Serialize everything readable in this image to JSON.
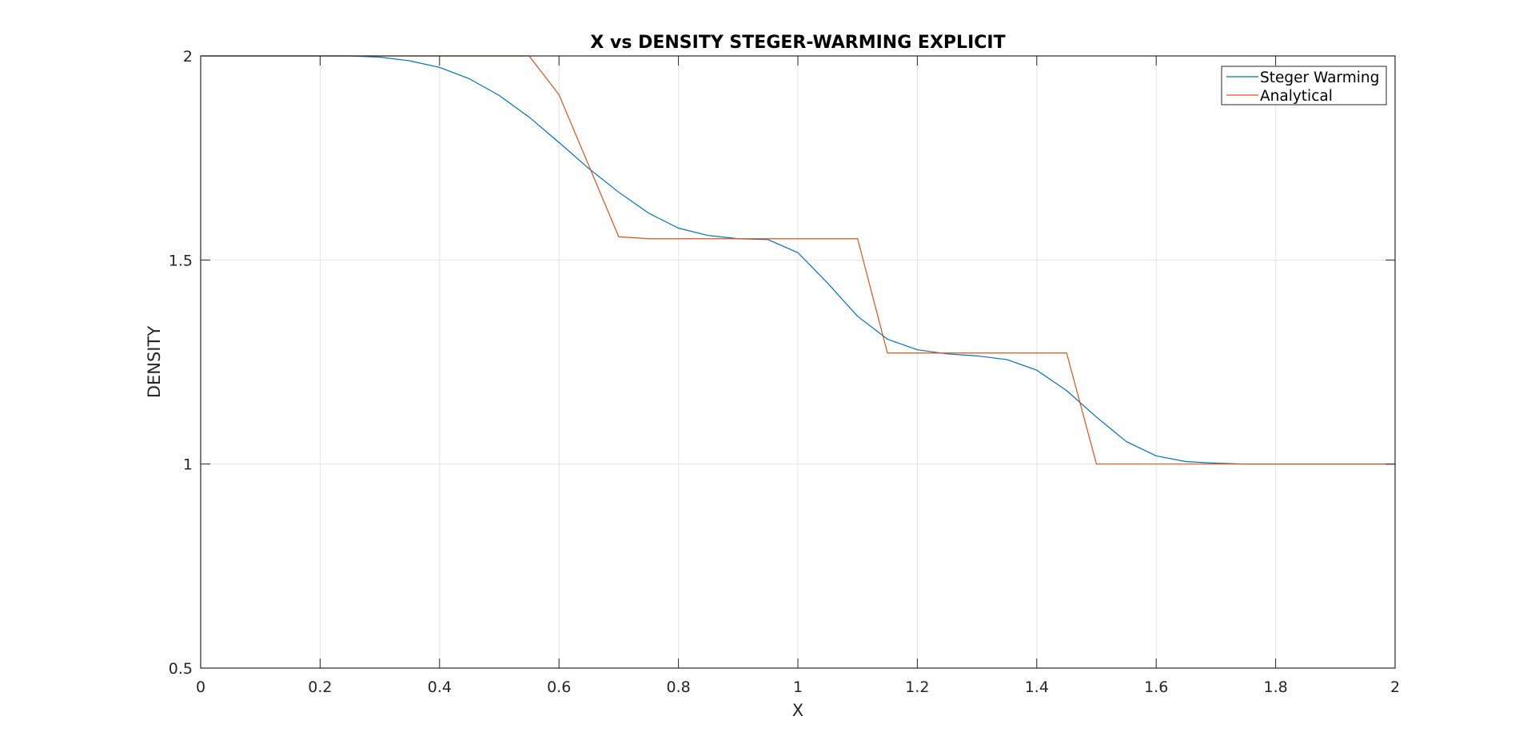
{
  "chart_data": {
    "type": "line",
    "title": "X vs DENSITY STEGER-WARMING EXPLICIT",
    "xlabel": "X",
    "ylabel": "DENSITY",
    "xlim": [
      0,
      2
    ],
    "ylim": [
      0.5,
      2
    ],
    "xticks": [
      0,
      0.2,
      0.4,
      0.6,
      0.8,
      1,
      1.2,
      1.4,
      1.6,
      1.8,
      2
    ],
    "yticks": [
      0.5,
      1,
      1.5,
      2
    ],
    "xtick_labels": [
      "0",
      "0.2",
      "0.4",
      "0.6",
      "0.8",
      "1",
      "1.2",
      "1.4",
      "1.6",
      "1.8",
      "2"
    ],
    "ytick_labels": [
      "0.5",
      "1",
      "1.5",
      "2"
    ],
    "grid": true,
    "legend_position": "top-right",
    "series": [
      {
        "name": "Steger Warming",
        "color": "#0072BD",
        "x": [
          0,
          0.05,
          0.1,
          0.15,
          0.2,
          0.25,
          0.3,
          0.35,
          0.4,
          0.45,
          0.5,
          0.55,
          0.6,
          0.65,
          0.7,
          0.75,
          0.8,
          0.85,
          0.9,
          0.95,
          1,
          1.05,
          1.1,
          1.15,
          1.2,
          1.25,
          1.3,
          1.35,
          1.4,
          1.45,
          1.5,
          1.55,
          1.6,
          1.65,
          1.7,
          1.75,
          1.8,
          1.85,
          1.9,
          1.95,
          2
        ],
        "y": [
          2,
          2,
          2,
          2,
          2,
          2,
          1.997,
          1.988,
          1.972,
          1.944,
          1.903,
          1.85,
          1.788,
          1.724,
          1.666,
          1.615,
          1.578,
          1.56,
          1.552,
          1.55,
          1.518,
          1.443,
          1.362,
          1.306,
          1.28,
          1.27,
          1.265,
          1.256,
          1.23,
          1.18,
          1.115,
          1.055,
          1.02,
          1.006,
          1.002,
          1,
          1,
          1,
          1,
          1,
          1
        ]
      },
      {
        "name": "Analytical",
        "color": "#D95319",
        "x": [
          0,
          0.55,
          0.6,
          0.7,
          0.75,
          1.1,
          1.15,
          1.45,
          1.5,
          2
        ],
        "y": [
          2,
          2,
          1.905,
          1.557,
          1.552,
          1.552,
          1.272,
          1.272,
          1,
          1
        ]
      }
    ]
  }
}
